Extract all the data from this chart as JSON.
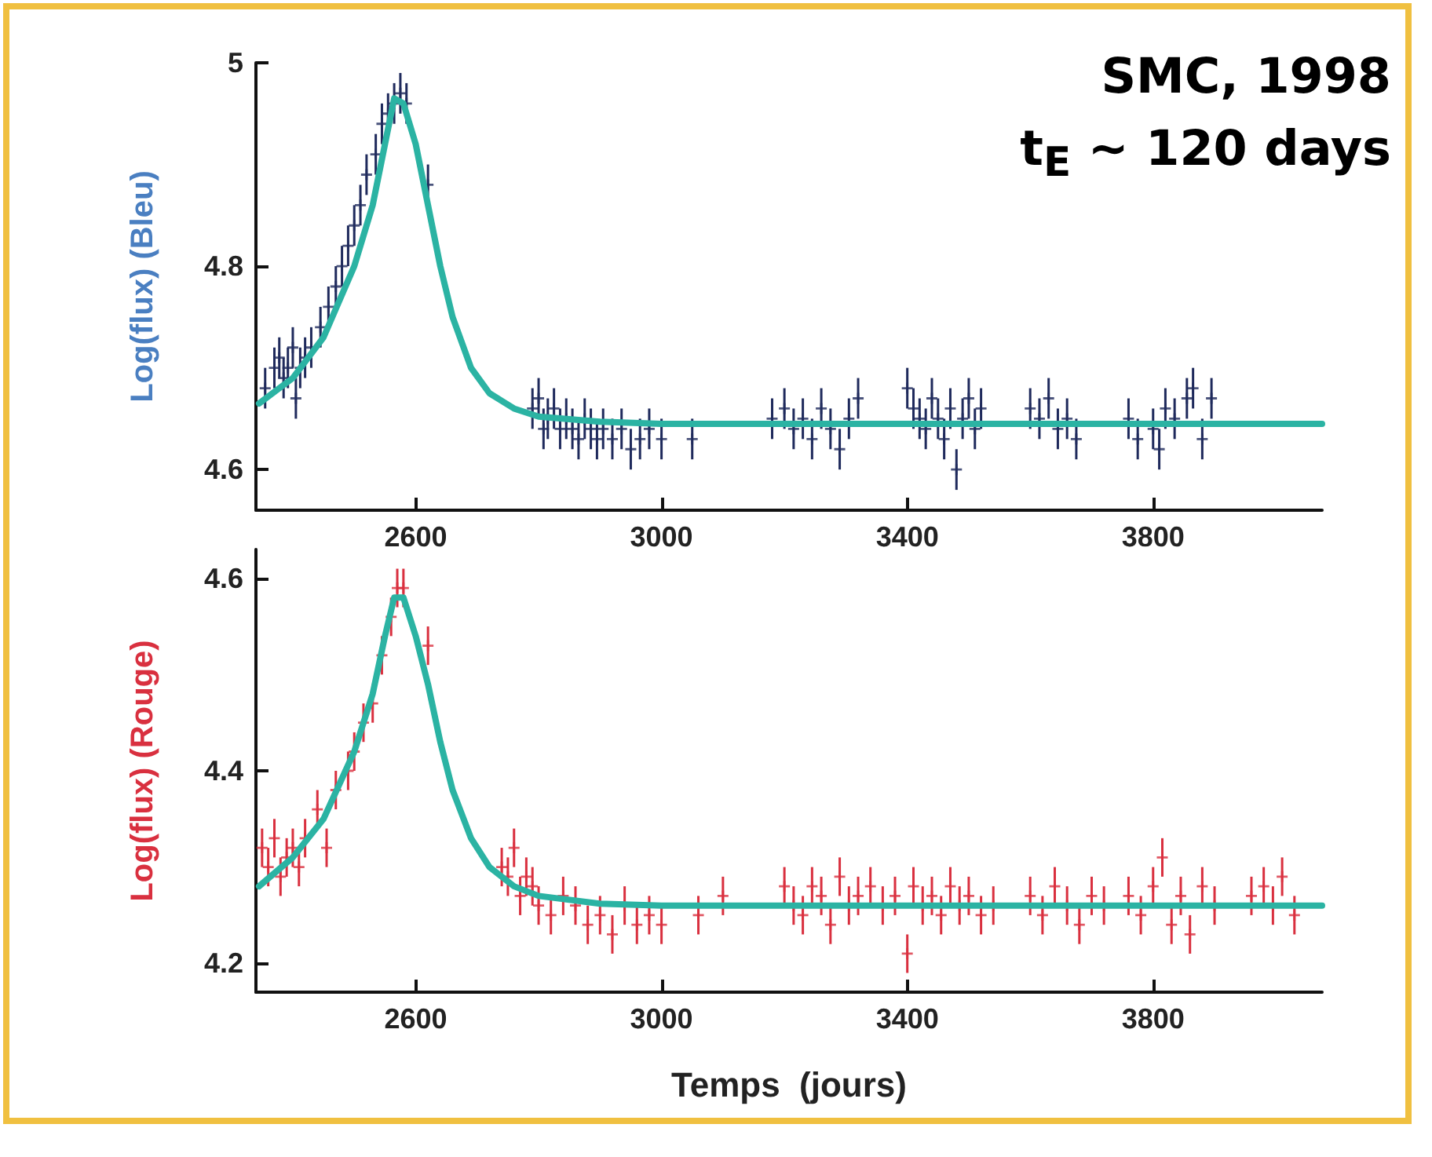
{
  "chart_data": [
    {
      "type": "scatter",
      "ylabel": "Log(flux) (Bleu)",
      "annotations": [
        "SMC, 1998",
        "t$_{E}$ ~ 120 days"
      ],
      "xlim": [
        2340,
        4075
      ],
      "xticks": [
        2600,
        3000,
        3400,
        3800
      ],
      "ylim": [
        4.56,
        5.0
      ],
      "yticks": [
        4.6,
        4.8,
        5
      ],
      "marker": "cross",
      "series": [
        {
          "color": "#1f2a5c",
          "x": [
            2355,
            2370,
            2378,
            2385,
            2392,
            2400,
            2405,
            2412,
            2420,
            2430,
            2445,
            2458,
            2470,
            2480,
            2490,
            2500,
            2510,
            2520,
            2535,
            2545,
            2555,
            2565,
            2575,
            2585,
            2620,
            2790,
            2800,
            2808,
            2815,
            2825,
            2835,
            2845,
            2855,
            2865,
            2875,
            2885,
            2895,
            2905,
            2920,
            2935,
            2950,
            2965,
            2980,
            3000,
            3050,
            3180,
            3200,
            3215,
            3230,
            3245,
            3260,
            3275,
            3290,
            3305,
            3320,
            3400,
            3410,
            3420,
            3430,
            3440,
            3450,
            3460,
            3470,
            3480,
            3490,
            3500,
            3510,
            3520,
            3600,
            3615,
            3630,
            3645,
            3660,
            3675,
            3760,
            3775,
            3800,
            3810,
            3820,
            3835,
            3855,
            3865,
            3880,
            3895
          ],
          "values": [
            4.68,
            4.7,
            4.71,
            4.69,
            4.7,
            4.72,
            4.67,
            4.7,
            4.71,
            4.72,
            4.74,
            4.76,
            4.78,
            4.8,
            4.82,
            4.84,
            4.86,
            4.89,
            4.91,
            4.94,
            4.95,
            4.96,
            4.97,
            4.96,
            4.88,
            4.66,
            4.67,
            4.64,
            4.65,
            4.66,
            4.64,
            4.65,
            4.64,
            4.63,
            4.65,
            4.64,
            4.63,
            4.64,
            4.63,
            4.64,
            4.62,
            4.63,
            4.64,
            4.63,
            4.63,
            4.65,
            4.66,
            4.64,
            4.65,
            4.63,
            4.66,
            4.64,
            4.62,
            4.65,
            4.67,
            4.68,
            4.66,
            4.65,
            4.64,
            4.67,
            4.65,
            4.63,
            4.66,
            4.6,
            4.65,
            4.67,
            4.64,
            4.66,
            4.66,
            4.65,
            4.67,
            4.64,
            4.65,
            4.63,
            4.65,
            4.63,
            4.64,
            4.62,
            4.66,
            4.65,
            4.67,
            4.68,
            4.63,
            4.67
          ],
          "errors": [
            0.02,
            0.02,
            0.02,
            0.02,
            0.02,
            0.02,
            0.02,
            0.02,
            0.02,
            0.02,
            0.02,
            0.02,
            0.02,
            0.02,
            0.02,
            0.02,
            0.02,
            0.02,
            0.02,
            0.02,
            0.02,
            0.02,
            0.02,
            0.02,
            0.02,
            0.02,
            0.02,
            0.02,
            0.02,
            0.02,
            0.02,
            0.02,
            0.02,
            0.02,
            0.02,
            0.02,
            0.02,
            0.02,
            0.02,
            0.02,
            0.02,
            0.02,
            0.02,
            0.02,
            0.02,
            0.02,
            0.02,
            0.02,
            0.02,
            0.02,
            0.02,
            0.02,
            0.02,
            0.02,
            0.02,
            0.02,
            0.02,
            0.02,
            0.02,
            0.02,
            0.02,
            0.02,
            0.02,
            0.02,
            0.02,
            0.02,
            0.02,
            0.02,
            0.02,
            0.02,
            0.02,
            0.02,
            0.02,
            0.02,
            0.02,
            0.02,
            0.02,
            0.02,
            0.02,
            0.02,
            0.02,
            0.02,
            0.02,
            0.02
          ]
        },
        {
          "type": "line",
          "color": "#2bb3a3",
          "marker": "none",
          "x": [
            2345,
            2400,
            2450,
            2500,
            2530,
            2550,
            2565,
            2580,
            2600,
            2620,
            2640,
            2660,
            2690,
            2720,
            2760,
            2800,
            2900,
            3000,
            4075
          ],
          "values": [
            4.665,
            4.69,
            4.73,
            4.8,
            4.86,
            4.92,
            4.965,
            4.96,
            4.92,
            4.86,
            4.8,
            4.75,
            4.7,
            4.675,
            4.66,
            4.652,
            4.647,
            4.645,
            4.645
          ]
        }
      ]
    },
    {
      "type": "scatter",
      "ylabel": "Log(flux) (Rouge)",
      "xlabel": "Temps  (jours)",
      "xlim": [
        2340,
        4075
      ],
      "xticks": [
        2600,
        3000,
        3400,
        3800
      ],
      "ylim": [
        4.17,
        4.63
      ],
      "yticks": [
        4.2,
        4.4,
        4.6
      ],
      "marker": "cross",
      "series": [
        {
          "color": "#d9303f",
          "x": [
            2350,
            2360,
            2370,
            2380,
            2390,
            2400,
            2410,
            2420,
            2440,
            2455,
            2470,
            2490,
            2500,
            2515,
            2530,
            2545,
            2560,
            2570,
            2580,
            2620,
            2740,
            2750,
            2760,
            2770,
            2780,
            2790,
            2800,
            2820,
            2840,
            2860,
            2880,
            2900,
            2920,
            2940,
            2960,
            2980,
            3000,
            3060,
            3100,
            3200,
            3215,
            3230,
            3245,
            3260,
            3275,
            3290,
            3305,
            3320,
            3340,
            3360,
            3380,
            3400,
            3410,
            3425,
            3440,
            3455,
            3470,
            3485,
            3500,
            3520,
            3540,
            3600,
            3620,
            3640,
            3660,
            3680,
            3700,
            3720,
            3760,
            3780,
            3800,
            3815,
            3830,
            3845,
            3860,
            3880,
            3900,
            3960,
            3980,
            3995,
            4010,
            4030
          ],
          "values": [
            4.32,
            4.3,
            4.33,
            4.29,
            4.31,
            4.32,
            4.3,
            4.33,
            4.36,
            4.32,
            4.38,
            4.4,
            4.42,
            4.45,
            4.47,
            4.52,
            4.56,
            4.59,
            4.59,
            4.53,
            4.3,
            4.29,
            4.32,
            4.27,
            4.29,
            4.28,
            4.26,
            4.25,
            4.27,
            4.26,
            4.24,
            4.25,
            4.23,
            4.26,
            4.24,
            4.25,
            4.24,
            4.25,
            4.27,
            4.28,
            4.26,
            4.25,
            4.28,
            4.27,
            4.24,
            4.29,
            4.26,
            4.27,
            4.28,
            4.26,
            4.27,
            4.21,
            4.28,
            4.26,
            4.27,
            4.25,
            4.28,
            4.26,
            4.27,
            4.25,
            4.26,
            4.27,
            4.25,
            4.28,
            4.26,
            4.24,
            4.27,
            4.26,
            4.27,
            4.25,
            4.28,
            4.31,
            4.24,
            4.27,
            4.23,
            4.28,
            4.26,
            4.27,
            4.28,
            4.26,
            4.29,
            4.25
          ],
          "errors": [
            0.02,
            0.02,
            0.02,
            0.02,
            0.02,
            0.02,
            0.02,
            0.02,
            0.02,
            0.02,
            0.02,
            0.02,
            0.02,
            0.02,
            0.02,
            0.02,
            0.02,
            0.02,
            0.02,
            0.02,
            0.02,
            0.02,
            0.02,
            0.02,
            0.02,
            0.02,
            0.02,
            0.02,
            0.02,
            0.02,
            0.02,
            0.02,
            0.02,
            0.02,
            0.02,
            0.02,
            0.02,
            0.02,
            0.02,
            0.02,
            0.02,
            0.02,
            0.02,
            0.02,
            0.02,
            0.02,
            0.02,
            0.02,
            0.02,
            0.02,
            0.02,
            0.02,
            0.02,
            0.02,
            0.02,
            0.02,
            0.02,
            0.02,
            0.02,
            0.02,
            0.02,
            0.02,
            0.02,
            0.02,
            0.02,
            0.02,
            0.02,
            0.02,
            0.02,
            0.02,
            0.02,
            0.02,
            0.02,
            0.02,
            0.02,
            0.02,
            0.02,
            0.02,
            0.02,
            0.02,
            0.02,
            0.02
          ]
        },
        {
          "type": "line",
          "color": "#2bb3a3",
          "marker": "none",
          "x": [
            2345,
            2400,
            2450,
            2500,
            2530,
            2550,
            2565,
            2580,
            2600,
            2620,
            2640,
            2660,
            2690,
            2720,
            2760,
            2800,
            2900,
            3000,
            4075
          ],
          "values": [
            4.28,
            4.31,
            4.35,
            4.42,
            4.48,
            4.54,
            4.58,
            4.58,
            4.54,
            4.49,
            4.43,
            4.38,
            4.33,
            4.3,
            4.28,
            4.27,
            4.262,
            4.26,
            4.26
          ]
        }
      ]
    }
  ]
}
